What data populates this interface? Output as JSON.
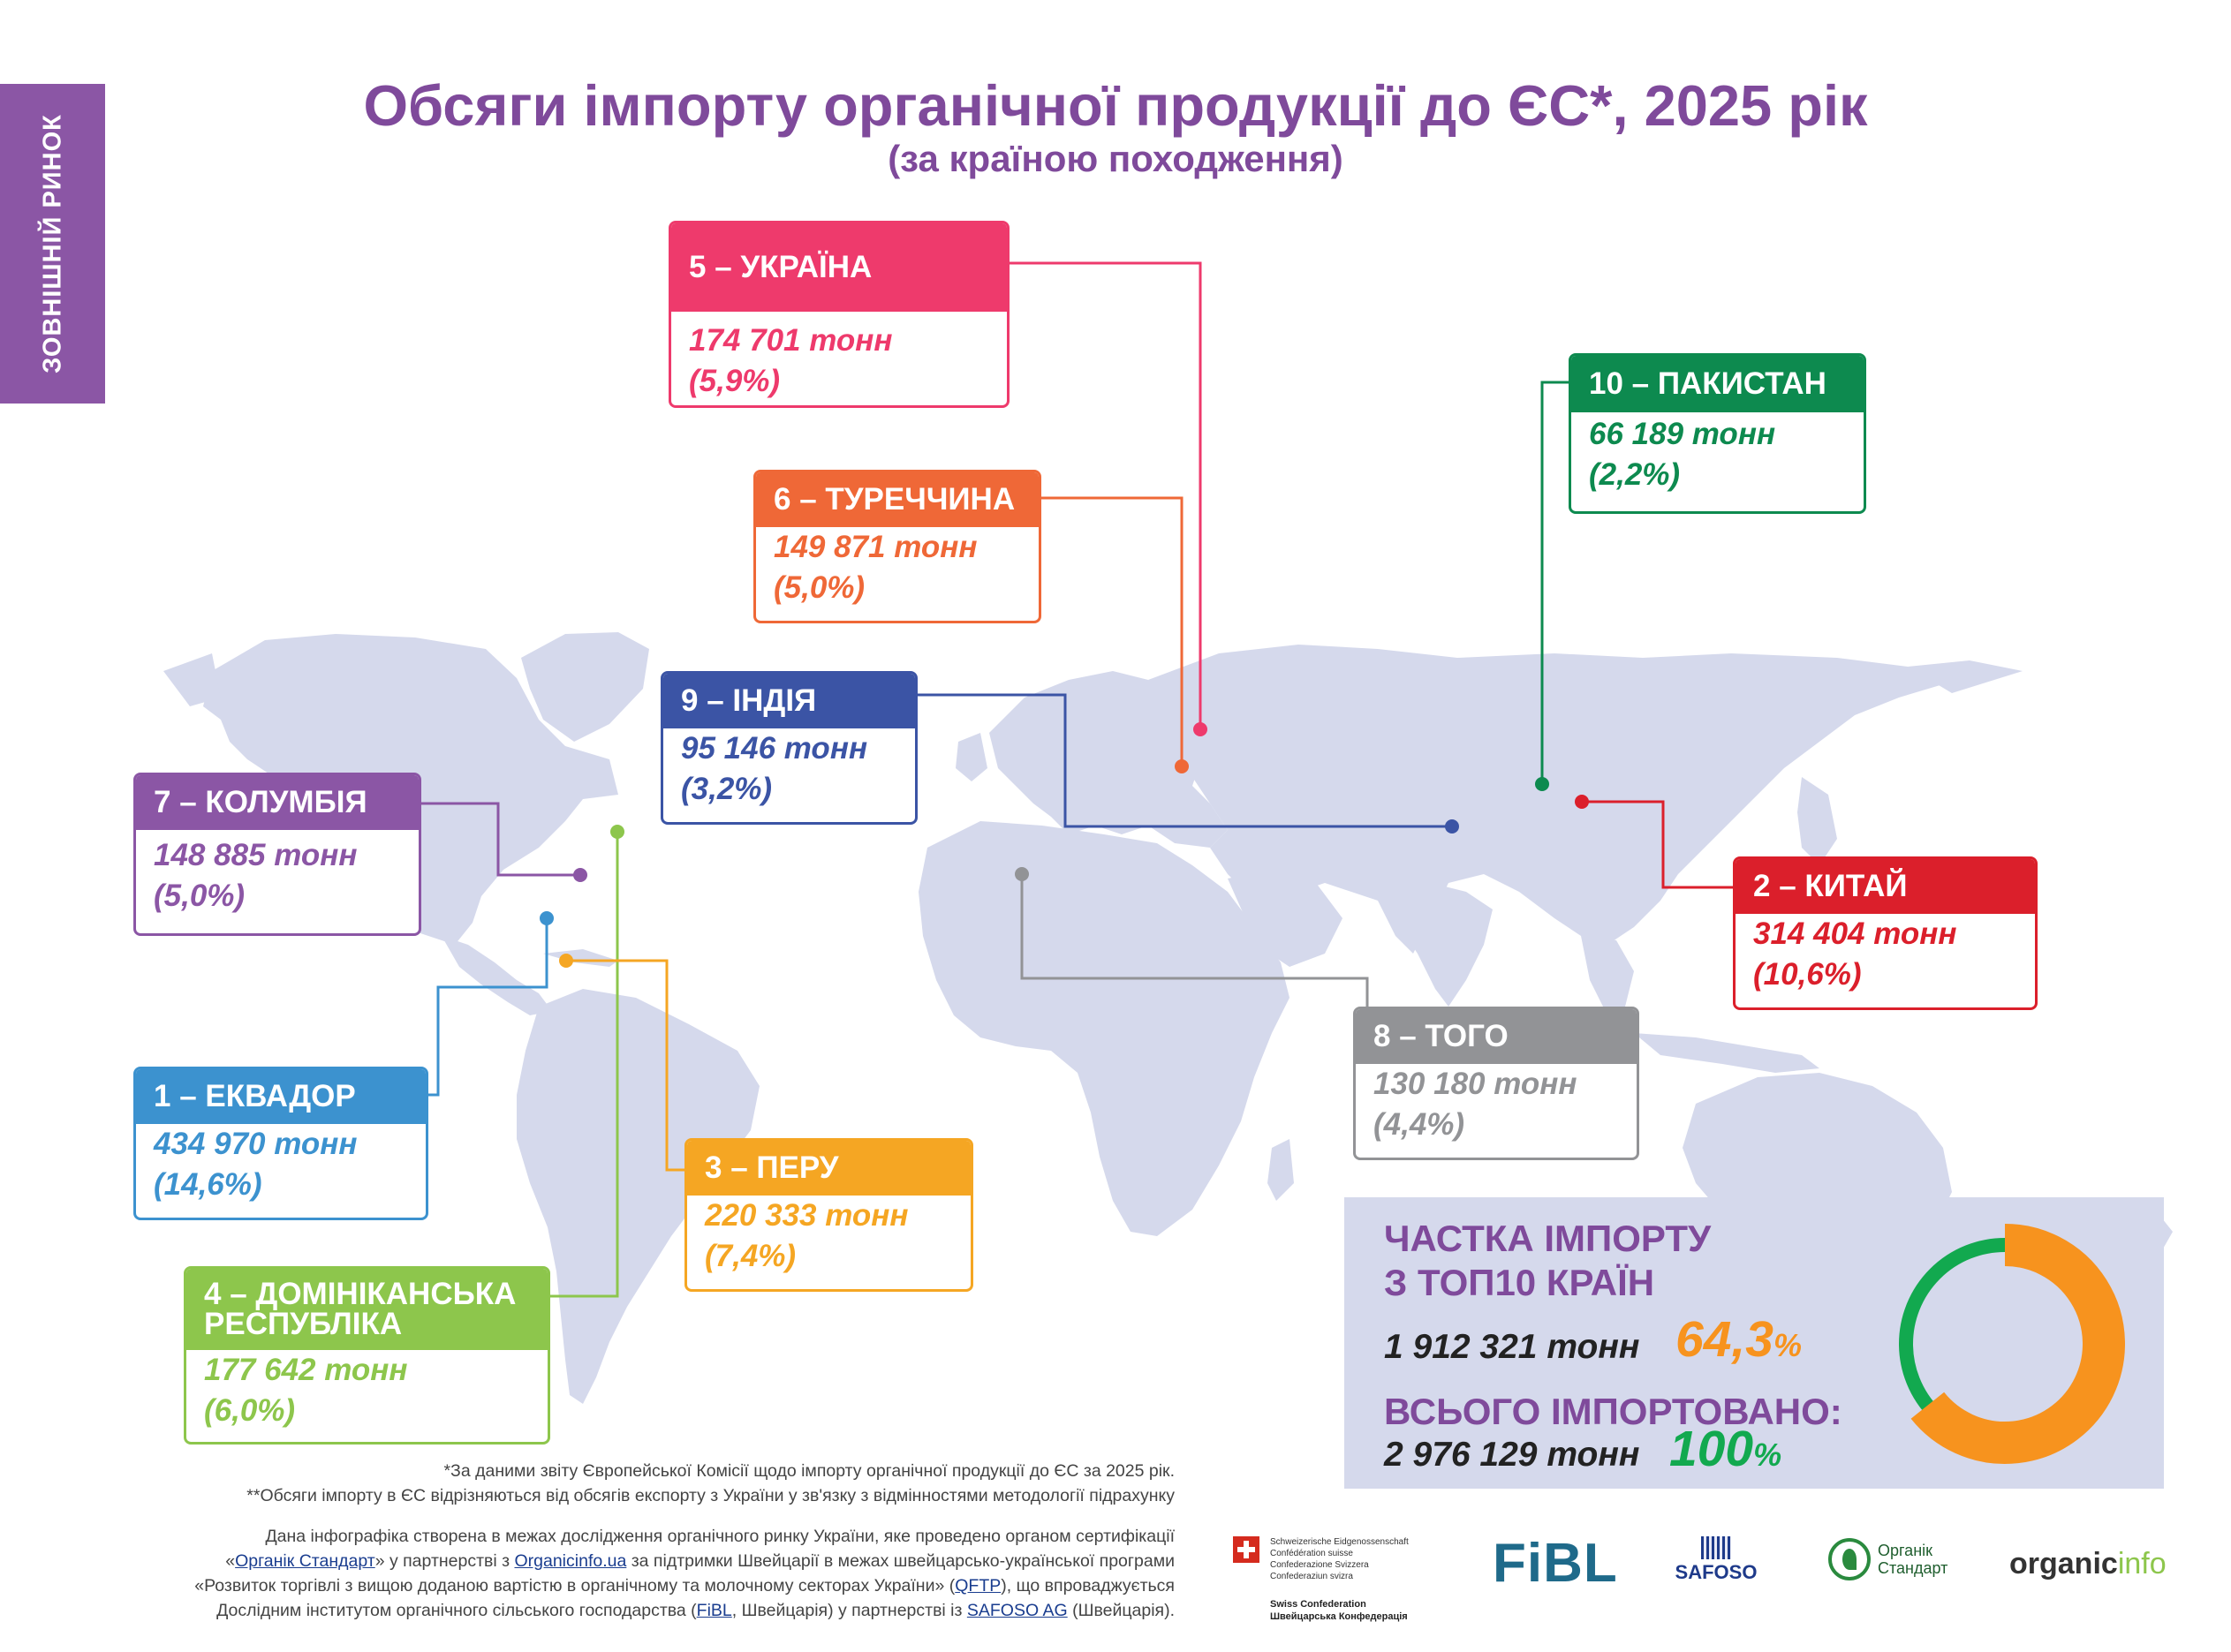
{
  "side_tab": "ЗОВНІШНІЙ РИНОК",
  "title": "Обсяги імпорту органічної продукції до ЄС*, 2025 рік",
  "subtitle": "(за країною походження)",
  "colors": {
    "purple": "#8b56a5",
    "map": "#d5d9ec",
    "ukraine": "#ee3a6c",
    "turkey": "#ef6837",
    "india": "#3b54a5",
    "colombia": "#8b56a5",
    "ecuador": "#3c92cf",
    "dominican": "#8dc64c",
    "peru": "#f5a623",
    "pakistan": "#0d8a4f",
    "china": "#db1f2b",
    "togo": "#929396",
    "share_orange": "#f7931e",
    "share_green": "#12a94f"
  },
  "countries": [
    {
      "key": "ukraine",
      "label": "5 – УКРАЇНА",
      "tonnes": "174 701 тонн",
      "share": "(5,9%)"
    },
    {
      "key": "turkey",
      "label": "6 – ТУРЕЧЧИНА",
      "tonnes": "149 871 тонн",
      "share": "(5,0%)"
    },
    {
      "key": "india",
      "label": "9 – ІНДІЯ",
      "tonnes": "95 146 тонн",
      "share": "(3,2%)"
    },
    {
      "key": "colombia",
      "label": "7 – КОЛУМБІЯ",
      "tonnes": "148 885 тонн",
      "share": "(5,0%)"
    },
    {
      "key": "ecuador",
      "label": "1 – ЕКВАДОР",
      "tonnes": "434 970 тонн",
      "share": "(14,6%)"
    },
    {
      "key": "dominican",
      "label": "4 – ДОМІНІКАНСЬКА РЕСПУБЛІКА",
      "label_line1": "4 – ДОМІНІКАНСЬКА",
      "label_line2": "РЕСПУБЛІКА",
      "tonnes": "177 642 тонн",
      "share": "(6,0%)"
    },
    {
      "key": "peru",
      "label": "3 – ПЕРУ",
      "tonnes": "220 333 тонн",
      "share": "(7,4%)"
    },
    {
      "key": "pakistan",
      "label": "10 – ПАКИСТАН",
      "tonnes": "66 189 тонн",
      "share": "(2,2%)"
    },
    {
      "key": "china",
      "label": "2 – КИТАЙ",
      "tonnes": "314 404 тонн",
      "share": "(10,6%)"
    },
    {
      "key": "togo",
      "label": "8 – ТОГО",
      "tonnes": "130 180 тонн",
      "share": "(4,4%)"
    }
  ],
  "summary": {
    "top10_heading_line1": "ЧАСТКА ІМПОРТУ",
    "top10_heading_line2": "З ТОП10 КРАЇН",
    "top10_tonnes": "1 912 321 тонн",
    "top10_percent": "64,3",
    "total_heading": "ВСЬОГО ІМПОРТОВАНО:",
    "total_tonnes": "2 976 129 тонн",
    "total_percent": "100",
    "percent_sign": "%",
    "top10_fraction": 0.643
  },
  "footnotes": {
    "note1": "*За даними звіту Європейської Комісії щодо імпорту органічної продукції до ЄС за 2025 рік.",
    "note2": "**Обсяги імпорту в ЄС відрізняються від обсягів експорту з України у зв'язку з відмінностями методології підрахунку",
    "credits_1a": "Дана інфографіка створена в межах дослідження органічного ринку України, яке проведено органом сертифікації",
    "credits_2a": "«",
    "credits_2_link1": "Органік Стандарт",
    "credits_2b": "» у партнерстві з ",
    "credits_2_link2": "Organicinfo.ua",
    "credits_2c": " за підтримки Швейцарії в межах швейцарсько-української програми",
    "credits_3a": "«Розвиток торгівлі з вищою доданою вартістю в органічному та молочному секторах України» (",
    "credits_3_link": "QFTP",
    "credits_3b": "), що впроваджується",
    "credits_4a": "Дослідним інститутом органічного сільського господарства (",
    "credits_4_link1": "FiBL",
    "credits_4b": ", Швейцарія) у партнерстві із ",
    "credits_4_link2": "SAFOSO AG",
    "credits_4c": " (Швейцарія)."
  },
  "logos": {
    "swiss_line1": "Schweizerische Eidgenossenschaft",
    "swiss_line2": "Confédération suisse",
    "swiss_line3": "Confederazione Svizzera",
    "swiss_line4": "Confederaziun svizra",
    "swiss_en": "Swiss Confederation",
    "swiss_ua": "Швейцарська Конфедерація",
    "fibl": "FiBL",
    "safoso": "SAFOSO",
    "organic_standard_1": "Органік",
    "organic_standard_2": "Стандарт",
    "organicinfo_a": "organic",
    "organicinfo_b": "info"
  }
}
